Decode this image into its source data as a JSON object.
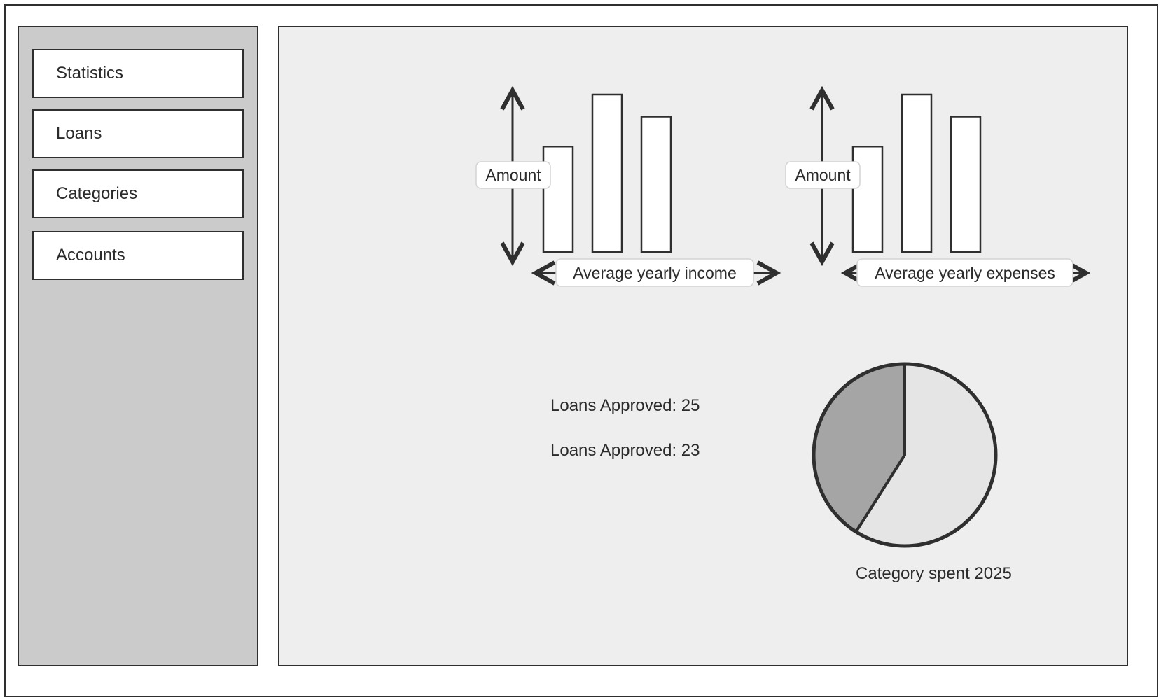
{
  "sidebar": {
    "items": [
      {
        "label": "Statistics"
      },
      {
        "label": "Loans"
      },
      {
        "label": "Categories"
      },
      {
        "label": "Accounts"
      }
    ]
  },
  "main": {
    "stats": [
      {
        "text": "Loans Approved: 25"
      },
      {
        "text": "Loans Approved: 23"
      }
    ],
    "pie_caption": "Category spent 2025"
  },
  "chart_data": [
    {
      "type": "bar",
      "ylabel": "Amount",
      "xlabel": "Average yearly income",
      "values": [
        0.67,
        1.0,
        0.86
      ],
      "color": "#ffffff"
    },
    {
      "type": "bar",
      "ylabel": "Amount",
      "xlabel": "Average yearly expenses",
      "values": [
        0.67,
        1.0,
        0.86
      ],
      "color": "#ffffff"
    },
    {
      "type": "pie",
      "title": "Category spent 2025",
      "values": [
        0.59,
        0.41
      ],
      "colors": [
        "#e5e5e5",
        "#a5a5a5"
      ]
    }
  ]
}
